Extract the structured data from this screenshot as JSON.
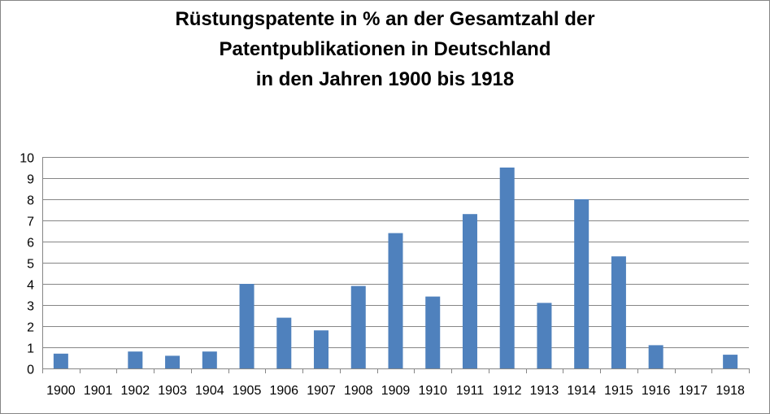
{
  "chart_data": {
    "type": "bar",
    "title_lines": [
      "Rüstungspatente in % an der Gesamtzahl der",
      "Patentpublikationen in Deutschland",
      "in den Jahren 1900 bis 1918"
    ],
    "xlabel": "",
    "ylabel": "",
    "categories": [
      "1900",
      "1901",
      "1902",
      "1903",
      "1904",
      "1905",
      "1906",
      "1907",
      "1908",
      "1909",
      "1910",
      "1911",
      "1912",
      "1913",
      "1914",
      "1915",
      "1916",
      "1917",
      "1918"
    ],
    "values": [
      0.7,
      0,
      0.8,
      0.6,
      0.8,
      4.0,
      2.4,
      1.8,
      3.9,
      6.4,
      3.4,
      7.3,
      9.5,
      3.1,
      8.0,
      5.3,
      1.1,
      0,
      0.65
    ],
    "ylim": [
      0,
      10
    ],
    "yticks": [
      "0",
      "1",
      "2",
      "3",
      "4",
      "5",
      "6",
      "7",
      "8",
      "9",
      "10"
    ],
    "grid": true,
    "legend": "none",
    "bar_color": "#4f81bd",
    "grid_color": "#868686"
  }
}
